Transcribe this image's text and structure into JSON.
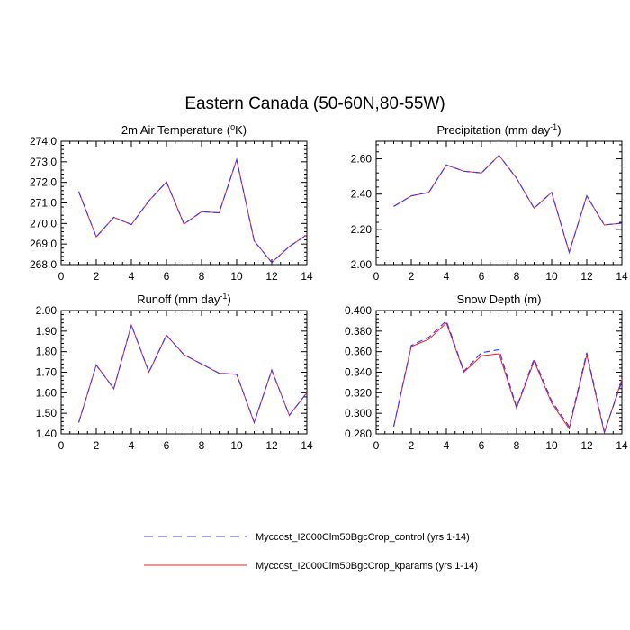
{
  "figure": {
    "title": "Eastern Canada (50-60N,80-55W)"
  },
  "legend": {
    "items": [
      {
        "label": "Myccost_I2000Clm50BgcCrop_control (yrs 1-14)",
        "color": "#3b3bff",
        "dash": "dashed"
      },
      {
        "label": "Myccost_I2000Clm50BgcCrop_kparams (yrs 1-14)",
        "color": "#ff1a1a",
        "dash": "solid"
      }
    ]
  },
  "chart_data": [
    {
      "type": "line",
      "title_main": "2m Air Temperature (",
      "title_sup": "o",
      "title_tail": "K)",
      "xlim": [
        0,
        14
      ],
      "ylim": [
        268.0,
        274.0
      ],
      "xticks": [
        0,
        2,
        4,
        6,
        8,
        10,
        12,
        14
      ],
      "yticks": [
        268.0,
        269.0,
        270.0,
        271.0,
        272.0,
        273.0,
        274.0
      ],
      "ytick_labels": [
        "268.0",
        "269.0",
        "270.0",
        "271.0",
        "272.0",
        "273.0",
        "274.0"
      ],
      "x": [
        1,
        2,
        3,
        4,
        5,
        6,
        7,
        8,
        9,
        10,
        11,
        12,
        13,
        14
      ],
      "series": [
        {
          "name": "Myccost_I2000Clm50BgcCrop_control (yrs 1-14)",
          "values": [
            271.55,
            269.35,
            270.3,
            269.95,
            271.1,
            272.02,
            269.97,
            270.57,
            270.52,
            273.1,
            269.15,
            268.1,
            268.88,
            269.45
          ]
        },
        {
          "name": "Myccost_I2000Clm50BgcCrop_kparams (yrs 1-14)",
          "values": [
            271.55,
            269.35,
            270.3,
            269.95,
            271.1,
            272.02,
            269.97,
            270.57,
            270.52,
            273.1,
            269.15,
            268.1,
            268.88,
            269.45
          ]
        }
      ]
    },
    {
      "type": "line",
      "title_main": "Precipitation (mm day",
      "title_sup": "-1",
      "title_tail": ")",
      "xlim": [
        0,
        14
      ],
      "ylim": [
        2.0,
        2.7
      ],
      "xticks": [
        0,
        2,
        4,
        6,
        8,
        10,
        12,
        14
      ],
      "yticks": [
        2.0,
        2.2,
        2.4,
        2.6
      ],
      "ytick_labels": [
        "2.00",
        "2.20",
        "2.40",
        "2.60"
      ],
      "x": [
        1,
        2,
        3,
        4,
        5,
        6,
        7,
        8,
        9,
        10,
        11,
        12,
        13,
        14
      ],
      "series": [
        {
          "name": "Myccost_I2000Clm50BgcCrop_control (yrs 1-14)",
          "values": [
            2.33,
            2.39,
            2.41,
            2.565,
            2.53,
            2.52,
            2.62,
            2.49,
            2.32,
            2.41,
            2.07,
            2.39,
            2.225,
            2.235
          ]
        },
        {
          "name": "Myccost_I2000Clm50BgcCrop_kparams (yrs 1-14)",
          "values": [
            2.33,
            2.39,
            2.41,
            2.565,
            2.53,
            2.52,
            2.62,
            2.49,
            2.32,
            2.41,
            2.07,
            2.39,
            2.225,
            2.235
          ]
        }
      ]
    },
    {
      "type": "line",
      "title_main": "Runoff (mm day",
      "title_sup": "-1",
      "title_tail": ")",
      "xlim": [
        0,
        14
      ],
      "ylim": [
        1.4,
        2.0
      ],
      "xticks": [
        0,
        2,
        4,
        6,
        8,
        10,
        12,
        14
      ],
      "yticks": [
        1.4,
        1.5,
        1.6,
        1.7,
        1.8,
        1.9,
        2.0
      ],
      "ytick_labels": [
        "1.40",
        "1.50",
        "1.60",
        "1.70",
        "1.80",
        "1.90",
        "2.00"
      ],
      "x": [
        1,
        2,
        3,
        4,
        5,
        6,
        7,
        8,
        9,
        10,
        11,
        12,
        13,
        14
      ],
      "series": [
        {
          "name": "Myccost_I2000Clm50BgcCrop_control (yrs 1-14)",
          "values": [
            1.455,
            1.735,
            1.62,
            1.93,
            1.7,
            1.88,
            1.785,
            1.74,
            1.695,
            1.69,
            1.455,
            1.71,
            1.49,
            1.6
          ]
        },
        {
          "name": "Myccost_I2000Clm50BgcCrop_kparams (yrs 1-14)",
          "values": [
            1.455,
            1.735,
            1.62,
            1.93,
            1.7,
            1.88,
            1.785,
            1.74,
            1.695,
            1.69,
            1.455,
            1.71,
            1.49,
            1.6
          ]
        }
      ]
    },
    {
      "type": "line",
      "title_main": "Snow Depth (m)",
      "title_sup": "",
      "title_tail": "",
      "xlim": [
        0,
        14
      ],
      "ylim": [
        0.28,
        0.4
      ],
      "xticks": [
        0,
        2,
        4,
        6,
        8,
        10,
        12,
        14
      ],
      "yticks": [
        0.28,
        0.3,
        0.32,
        0.34,
        0.36,
        0.38,
        0.4
      ],
      "ytick_labels": [
        "0.280",
        "0.300",
        "0.320",
        "0.340",
        "0.360",
        "0.380",
        "0.400"
      ],
      "x": [
        1,
        2,
        3,
        4,
        5,
        6,
        7,
        8,
        9,
        10,
        11,
        12,
        13,
        14
      ],
      "series": [
        {
          "name": "Myccost_I2000Clm50BgcCrop_control (yrs 1-14)",
          "values": [
            0.287,
            0.366,
            0.374,
            0.39,
            0.341,
            0.359,
            0.362,
            0.306,
            0.353,
            0.312,
            0.287,
            0.359,
            0.282,
            0.331
          ]
        },
        {
          "name": "Myccost_I2000Clm50BgcCrop_kparams (yrs 1-14)",
          "values": [
            0.287,
            0.365,
            0.372,
            0.388,
            0.34,
            0.356,
            0.358,
            0.305,
            0.351,
            0.31,
            0.285,
            0.357,
            0.281,
            0.333
          ]
        }
      ]
    }
  ]
}
